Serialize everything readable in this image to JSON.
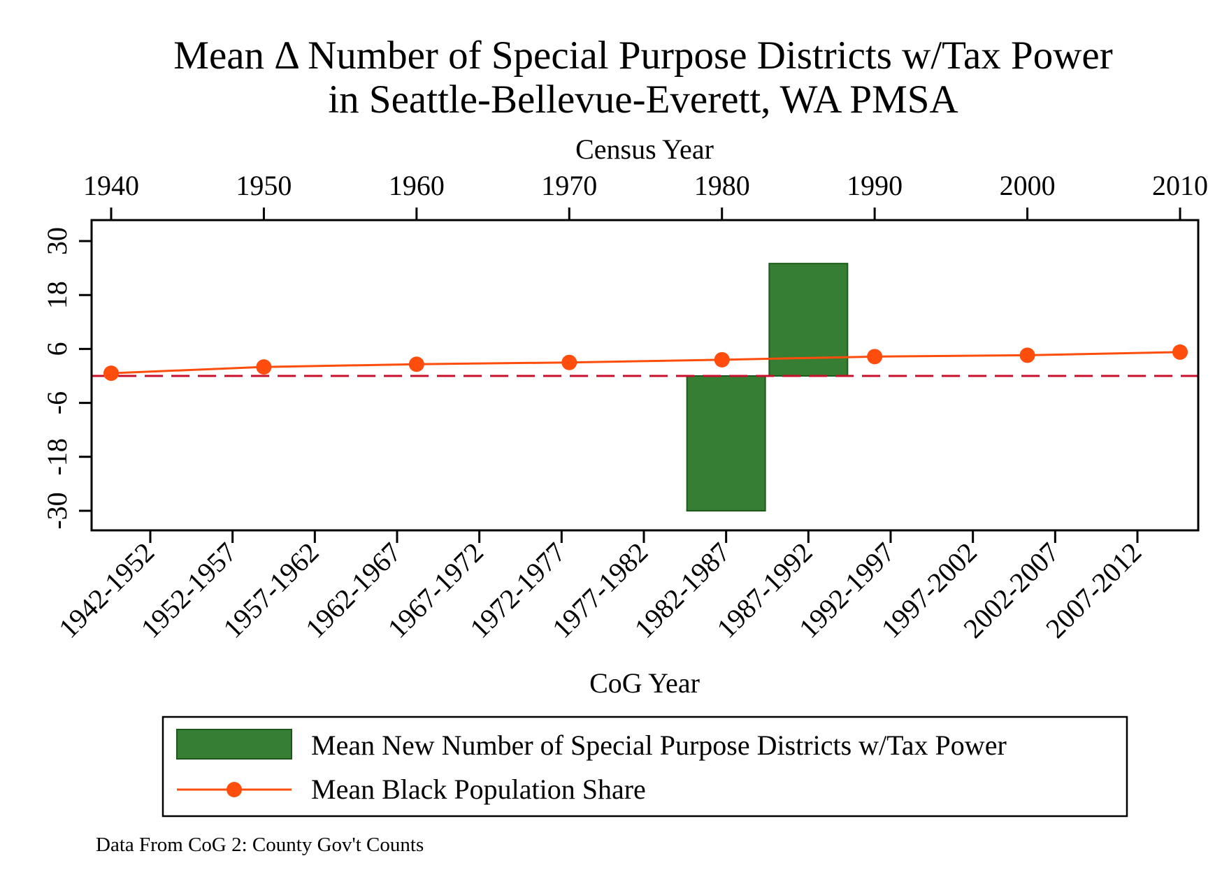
{
  "chart_data": {
    "type": "bar",
    "title_line1": "Mean Δ Number of Special Purpose Districts w/Tax Power",
    "title_line2": "in Seattle-Bellevue-Everett, WA PMSA",
    "top_axis_title": "Census Year",
    "bottom_axis_title": "CoG Year",
    "top_ticks": [
      "1940",
      "1950",
      "1960",
      "1970",
      "1980",
      "1990",
      "2000",
      "2010"
    ],
    "left_ticks": [
      30,
      18,
      6,
      -6,
      -18,
      -30
    ],
    "ylim": [
      -34.5,
      34
    ],
    "bottom_ticks": [
      "1942-1952",
      "1952-1957",
      "1957-1962",
      "1962-1967",
      "1967-1972",
      "1972-1977",
      "1977-1982",
      "1982-1987",
      "1987-1992",
      "1992-1997",
      "1997-2002",
      "2002-2007",
      "2007-2012"
    ],
    "bars": {
      "name": "Mean New Number of Special Purpose Districts w/Tax Power",
      "color": "#367e34",
      "values": [
        {
          "period": "1982-1987",
          "value": -30
        },
        {
          "period": "1987-1992",
          "value": 25
        }
      ]
    },
    "line": {
      "name": "Mean Black Population Share",
      "color": "#ff4d0d",
      "points": [
        {
          "year": 1940,
          "value": 0.6
        },
        {
          "year": 1950,
          "value": 2.0
        },
        {
          "year": 1960,
          "value": 2.6
        },
        {
          "year": 1970,
          "value": 3.0
        },
        {
          "year": 1980,
          "value": 3.6
        },
        {
          "year": 1990,
          "value": 4.3
        },
        {
          "year": 2000,
          "value": 4.6
        },
        {
          "year": 2010,
          "value": 5.3
        }
      ]
    },
    "reference_line": {
      "value": 0,
      "color": "#c8102e",
      "style": "dashed"
    },
    "legend_position": "bottom",
    "note": "Data From CoG 2: County Gov't Counts"
  }
}
